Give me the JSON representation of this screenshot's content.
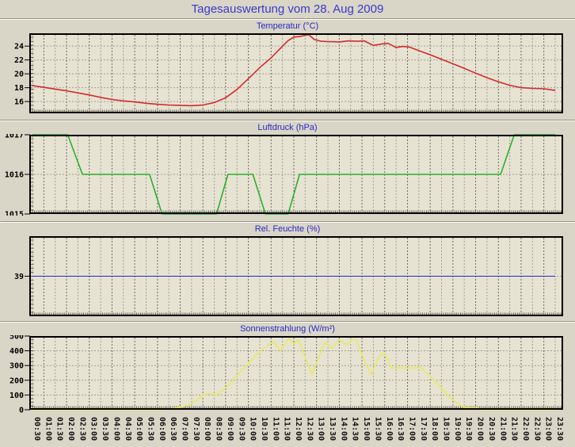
{
  "page": {
    "title": "Tagesauswertung vom 28. Aug 2009"
  },
  "colors": {
    "background": "#d9d5c7",
    "plot_background": "#e6e3d3",
    "grid_half_hour": "#a29f93",
    "grid_hour": "#6e6c62",
    "axis": "#000000",
    "page_title_text": "#3b3bc8",
    "chart_title_text": "#2a2ac4",
    "temperature_line": "#d42a2a",
    "pressure_line": "#2bb02b",
    "humidity_line": "#2929c8",
    "sun_line": "#e9e95c"
  },
  "x_axis": {
    "tick_labels": [
      "00:30",
      "01:00",
      "01:30",
      "02:00",
      "02:30",
      "03:00",
      "03:30",
      "04:00",
      "04:30",
      "05:00",
      "05:30",
      "06:00",
      "06:30",
      "07:00",
      "07:30",
      "08:00",
      "08:30",
      "09:00",
      "09:30",
      "10:00",
      "10:30",
      "11:00",
      "11:30",
      "12:00",
      "12:30",
      "13:00",
      "13:30",
      "14:00",
      "14:30",
      "15:00",
      "15:30",
      "16:00",
      "16:30",
      "17:00",
      "17:30",
      "18:00",
      "18:30",
      "19:00",
      "19:30",
      "20:00",
      "20:30",
      "21:00",
      "21:30",
      "22:00",
      "22:30",
      "23:00",
      "23:30"
    ]
  },
  "chart_data": [
    {
      "type": "line",
      "title": "Temperatur (°C)",
      "unit": "°C",
      "series_name": "temperature",
      "color_key": "temperature_line",
      "ylim": [
        14.3,
        25.85
      ],
      "yticks": [
        16,
        18,
        20,
        22,
        24
      ],
      "points": [
        [
          0.5,
          18.3
        ],
        [
          1.0,
          18.05
        ],
        [
          1.5,
          17.8
        ],
        [
          2.0,
          17.55
        ],
        [
          2.5,
          17.25
        ],
        [
          3.0,
          16.95
        ],
        [
          3.5,
          16.6
        ],
        [
          4.0,
          16.3
        ],
        [
          4.5,
          16.1
        ],
        [
          5.0,
          15.95
        ],
        [
          5.5,
          15.75
        ],
        [
          6.0,
          15.6
        ],
        [
          6.5,
          15.5
        ],
        [
          7.0,
          15.45
        ],
        [
          7.5,
          15.4
        ],
        [
          8.0,
          15.5
        ],
        [
          8.5,
          15.85
        ],
        [
          9.0,
          16.55
        ],
        [
          9.5,
          17.75
        ],
        [
          10.0,
          19.3
        ],
        [
          10.5,
          20.9
        ],
        [
          11.0,
          22.3
        ],
        [
          11.5,
          24.0
        ],
        [
          11.75,
          24.8
        ],
        [
          12.0,
          25.3
        ],
        [
          12.3,
          25.4
        ],
        [
          12.65,
          25.65
        ],
        [
          12.9,
          24.95
        ],
        [
          13.2,
          24.7
        ],
        [
          13.5,
          24.65
        ],
        [
          14.0,
          24.6
        ],
        [
          14.4,
          24.75
        ],
        [
          14.8,
          24.7
        ],
        [
          15.1,
          24.75
        ],
        [
          15.5,
          24.1
        ],
        [
          15.85,
          24.3
        ],
        [
          16.15,
          24.4
        ],
        [
          16.5,
          23.8
        ],
        [
          16.8,
          23.95
        ],
        [
          17.1,
          23.85
        ],
        [
          17.5,
          23.35
        ],
        [
          18.0,
          22.75
        ],
        [
          18.5,
          22.1
        ],
        [
          19.0,
          21.45
        ],
        [
          19.5,
          20.8
        ],
        [
          20.0,
          20.1
        ],
        [
          20.5,
          19.45
        ],
        [
          21.0,
          18.85
        ],
        [
          21.5,
          18.35
        ],
        [
          22.0,
          18.0
        ],
        [
          22.5,
          17.9
        ],
        [
          23.0,
          17.85
        ],
        [
          23.5,
          17.6
        ]
      ]
    },
    {
      "type": "line",
      "title": "Luftdruck (hPa)",
      "unit": "hPa",
      "series_name": "pressure",
      "color_key": "pressure_line",
      "ylim": [
        1015,
        1017
      ],
      "yticks": [
        1015,
        1016,
        1017
      ],
      "points": [
        [
          0.5,
          1017
        ],
        [
          2.05,
          1017
        ],
        [
          2.7,
          1016
        ],
        [
          5.65,
          1016
        ],
        [
          6.2,
          1015
        ],
        [
          8.6,
          1015
        ],
        [
          9.1,
          1016
        ],
        [
          10.2,
          1016
        ],
        [
          10.75,
          1015
        ],
        [
          11.75,
          1015
        ],
        [
          12.25,
          1016
        ],
        [
          21.1,
          1016
        ],
        [
          21.7,
          1017
        ],
        [
          23.5,
          1017
        ]
      ]
    },
    {
      "type": "line",
      "title": "Rel. Feuchte (%)",
      "unit": "%",
      "series_name": "humidity",
      "color_key": "humidity_line",
      "ylim": [
        37,
        41
      ],
      "yticks": [
        39
      ],
      "points": [
        [
          0.5,
          39
        ],
        [
          23.5,
          39
        ]
      ]
    },
    {
      "type": "line",
      "title": "Sonnenstrahlung (W/m²)",
      "unit": "W/m²",
      "series_name": "sun-radiation",
      "color_key": "sun_line",
      "ylim": [
        0,
        500
      ],
      "yticks": [
        0,
        100,
        200,
        300,
        400,
        500
      ],
      "points": [
        [
          0.5,
          0
        ],
        [
          6.0,
          0
        ],
        [
          6.3,
          3
        ],
        [
          6.5,
          6
        ],
        [
          7.0,
          16
        ],
        [
          7.5,
          42
        ],
        [
          8.0,
          95
        ],
        [
          8.25,
          110
        ],
        [
          8.6,
          100
        ],
        [
          9.0,
          148
        ],
        [
          9.35,
          205
        ],
        [
          9.7,
          268
        ],
        [
          10.0,
          312
        ],
        [
          10.3,
          365
        ],
        [
          10.7,
          420
        ],
        [
          11.1,
          463
        ],
        [
          11.4,
          400
        ],
        [
          11.8,
          488
        ],
        [
          12.0,
          445
        ],
        [
          12.2,
          478
        ],
        [
          12.65,
          295
        ],
        [
          12.8,
          240
        ],
        [
          13.35,
          455
        ],
        [
          13.7,
          420
        ],
        [
          14.0,
          478
        ],
        [
          14.35,
          440
        ],
        [
          14.7,
          498
        ],
        [
          15.05,
          350
        ],
        [
          15.4,
          240
        ],
        [
          15.75,
          362
        ],
        [
          16.0,
          383
        ],
        [
          16.3,
          282
        ],
        [
          16.65,
          285
        ],
        [
          17.0,
          283
        ],
        [
          17.6,
          286
        ],
        [
          18.2,
          195
        ],
        [
          18.8,
          95
        ],
        [
          19.3,
          30
        ],
        [
          19.55,
          14
        ],
        [
          20.1,
          12
        ],
        [
          20.3,
          0
        ],
        [
          23.5,
          0
        ]
      ]
    }
  ]
}
